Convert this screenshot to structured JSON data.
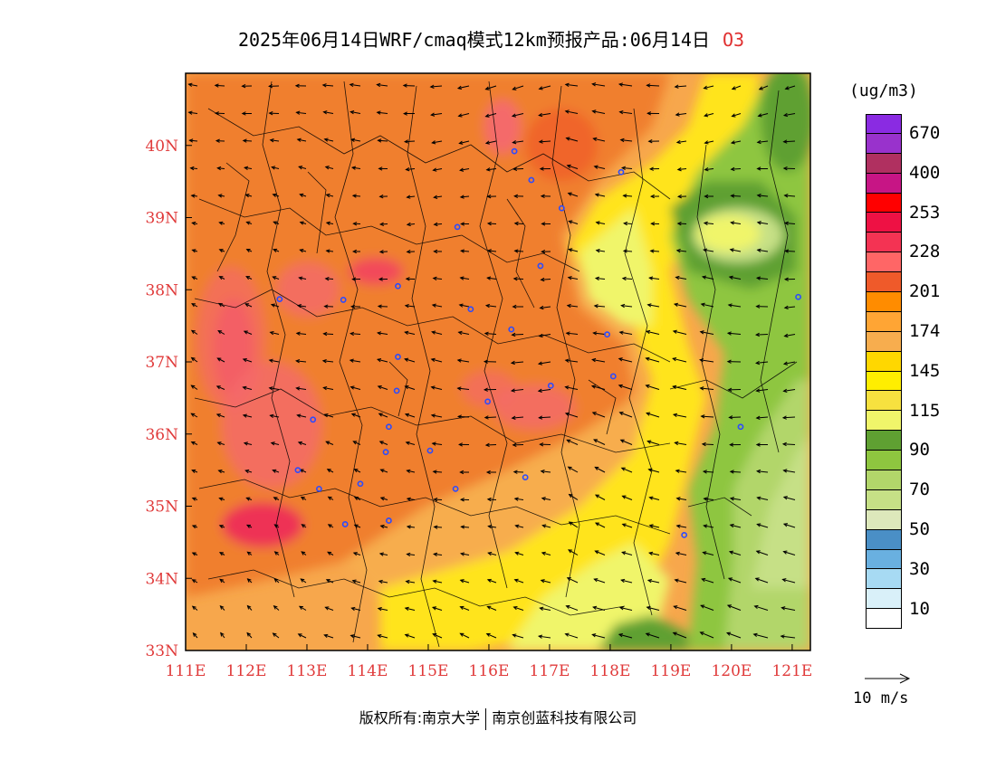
{
  "title": {
    "text": "2025年06月14日WRF/cmaq模式12km预报产品:06月14日",
    "species": "O3"
  },
  "map": {
    "lon_range": [
      111,
      121.3
    ],
    "lat_range": [
      33,
      41
    ],
    "lon_ticks": [
      "111E",
      "112E",
      "113E",
      "114E",
      "115E",
      "116E",
      "117E",
      "118E",
      "119E",
      "120E",
      "121E"
    ],
    "lat_ticks": [
      "33N",
      "34N",
      "35N",
      "36N",
      "37N",
      "38N",
      "39N",
      "40N"
    ],
    "tick_color": "#e03a3a"
  },
  "legend": {
    "unit": "(ug/m3)",
    "colors": [
      "#8a2be2",
      "#9932cc",
      "#b03060",
      "#c71585",
      "#ff0000",
      "#ee1144",
      "#f43353",
      "#ff6666",
      "#ef5a2a",
      "#ff8c00",
      "#ffa534",
      "#f7ad4e",
      "#ffd700",
      "#ffee00",
      "#f7e13f",
      "#f0f56a",
      "#5fa032",
      "#8ec63f",
      "#b2d66a",
      "#c6e086",
      "#dde8bb",
      "#4a8fc6",
      "#69b0e0",
      "#a7daf3",
      "#d9f0f9",
      "#ffffff"
    ],
    "labels": [
      "670",
      "400",
      "253",
      "228",
      "201",
      "174",
      "145",
      "115",
      "90",
      "70",
      "50",
      "30",
      "10"
    ]
  },
  "wind_reference": {
    "label": "10 m/s"
  },
  "copyright": {
    "left": "版权所有:南京大学",
    "right": "南京创蓝科技有限公司"
  },
  "stations": [
    [
      116.42,
      39.92
    ],
    [
      116.7,
      39.52
    ],
    [
      117.2,
      39.13
    ],
    [
      118.18,
      39.63
    ],
    [
      115.48,
      38.87
    ],
    [
      116.85,
      38.33
    ],
    [
      114.5,
      38.05
    ],
    [
      113.6,
      37.86
    ],
    [
      112.55,
      37.87
    ],
    [
      115.7,
      37.73
    ],
    [
      116.37,
      37.45
    ],
    [
      117.95,
      37.38
    ],
    [
      114.5,
      37.07
    ],
    [
      114.48,
      36.6
    ],
    [
      115.98,
      36.45
    ],
    [
      117.02,
      36.67
    ],
    [
      118.05,
      36.8
    ],
    [
      113.1,
      36.2
    ],
    [
      114.35,
      36.1
    ],
    [
      114.3,
      35.75
    ],
    [
      115.03,
      35.77
    ],
    [
      112.85,
      35.5
    ],
    [
      113.2,
      35.24
    ],
    [
      113.88,
      35.31
    ],
    [
      115.45,
      35.24
    ],
    [
      116.6,
      35.4
    ],
    [
      113.63,
      34.75
    ],
    [
      114.35,
      34.8
    ],
    [
      119.22,
      34.6
    ],
    [
      120.15,
      36.1
    ],
    [
      121.1,
      37.9
    ]
  ]
}
